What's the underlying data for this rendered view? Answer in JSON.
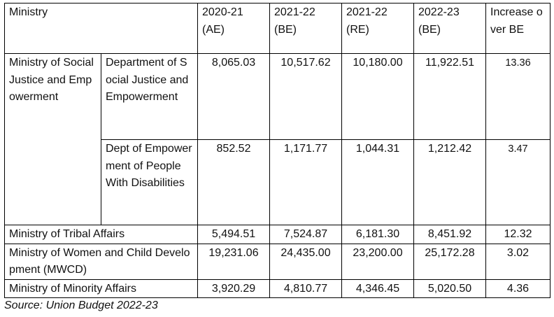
{
  "table": {
    "headers": {
      "ministry": "Ministry",
      "col1": {
        "line1": "2020-21",
        "line2": "(AE)"
      },
      "col2": {
        "line1": "2021-22",
        "line2": "(BE)"
      },
      "col3": {
        "line1": "2021-22",
        "line2": "(RE)"
      },
      "col4": {
        "line1": "2022-23",
        "line2": "(BE)"
      },
      "increase": "Increase over BE"
    },
    "rows": [
      {
        "ministry": "Ministry of Social Justice and Empowerment",
        "department": "Department of Social Justice and Empowerment",
        "ae_2020_21": "8,065.03",
        "be_2021_22": "10,517.62",
        "re_2021_22": "10,180.00",
        "be_2022_23": "11,922.51",
        "increase": "13.36"
      },
      {
        "department": "Dept of Empowerment of People With Disabilities",
        "ae_2020_21": "852.52",
        "be_2021_22": "1,171.77",
        "re_2021_22": "1,044.31",
        "be_2022_23": "1,212.42",
        "increase": "3.47"
      },
      {
        "ministry": "Ministry of Tribal Affairs",
        "ae_2020_21": "5,494.51",
        "be_2021_22": "7,524.87",
        "re_2021_22": "6,181.30",
        "be_2022_23": "8,451.92",
        "increase": "12.32"
      },
      {
        "ministry": "Ministry of Women and Child Development (MWCD)",
        "ae_2020_21": "19,231.06",
        "be_2021_22": "24,435.00",
        "re_2021_22": "23,200.00",
        "be_2022_23": "25,172.28",
        "increase": "3.02"
      },
      {
        "ministry": "Ministry of Minority Affairs",
        "ae_2020_21": "3,920.29",
        "be_2021_22": "4,810.77",
        "re_2021_22": "4,346.45",
        "be_2022_23": "5,020.50",
        "increase": "4.36"
      }
    ]
  },
  "source": "Source: Union Budget 2022-23"
}
